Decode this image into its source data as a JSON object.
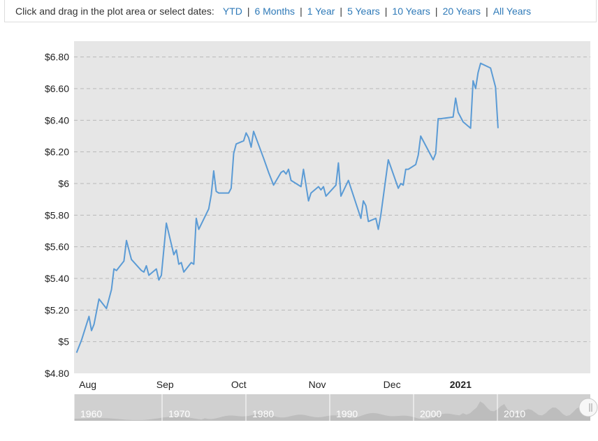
{
  "range_selector": {
    "prompt": "Click and drag in the plot area or select dates:",
    "options": [
      "YTD",
      "6 Months",
      "1 Year",
      "5 Years",
      "10 Years",
      "20 Years",
      "All Years"
    ]
  },
  "navigator": {
    "years": [
      "1960",
      "1970",
      "1980",
      "1990",
      "2000",
      "2010"
    ],
    "handle_icon": "drag-handle-icon"
  },
  "colors": {
    "line": "#5b9bd5",
    "plot_background": "#e6e6e6",
    "grid": "#b8b8b8",
    "navigator_background": "#d0d0d0",
    "navigator_area": "#bdbdbd",
    "link": "#2f7ab8"
  },
  "chart_data": {
    "type": "line",
    "title": "",
    "xlabel": "",
    "ylabel": "",
    "xlim": [
      "2020-07-30",
      "2021-02-22"
    ],
    "ylim": [
      4.8,
      6.9
    ],
    "grid": true,
    "legend": "none",
    "y_ticks": [
      {
        "value": 4.8,
        "label": "$4.80"
      },
      {
        "value": 5.0,
        "label": "$5"
      },
      {
        "value": 5.2,
        "label": "$5.20"
      },
      {
        "value": 5.4,
        "label": "$5.40"
      },
      {
        "value": 5.6,
        "label": "$5.60"
      },
      {
        "value": 5.8,
        "label": "$5.80"
      },
      {
        "value": 6.0,
        "label": "$6"
      },
      {
        "value": 6.2,
        "label": "$6.20"
      },
      {
        "value": 6.4,
        "label": "$6.40"
      },
      {
        "value": 6.6,
        "label": "$6.60"
      },
      {
        "value": 6.8,
        "label": "$6.80"
      }
    ],
    "x_ticks": [
      {
        "date": "2020-08-01",
        "label": "Aug",
        "bold": false
      },
      {
        "date": "2020-09-01",
        "label": "Sep",
        "bold": false
      },
      {
        "date": "2020-10-01",
        "label": "Oct",
        "bold": false
      },
      {
        "date": "2020-11-01",
        "label": "Nov",
        "bold": false
      },
      {
        "date": "2020-12-01",
        "label": "Dec",
        "bold": false
      },
      {
        "date": "2021-01-01",
        "label": "2021",
        "bold": true
      }
    ],
    "series": [
      {
        "points": [
          [
            "2020-07-31",
            4.93
          ],
          [
            "2020-08-02",
            5.01
          ],
          [
            "2020-08-05",
            5.16
          ],
          [
            "2020-08-06",
            5.07
          ],
          [
            "2020-08-07",
            5.11
          ],
          [
            "2020-08-09",
            5.27
          ],
          [
            "2020-08-12",
            5.21
          ],
          [
            "2020-08-14",
            5.33
          ],
          [
            "2020-08-15",
            5.46
          ],
          [
            "2020-08-16",
            5.45
          ],
          [
            "2020-08-19",
            5.51
          ],
          [
            "2020-08-20",
            5.64
          ],
          [
            "2020-08-22",
            5.52
          ],
          [
            "2020-08-26",
            5.45
          ],
          [
            "2020-08-27",
            5.44
          ],
          [
            "2020-08-28",
            5.48
          ],
          [
            "2020-08-29",
            5.42
          ],
          [
            "2020-09-01",
            5.46
          ],
          [
            "2020-09-02",
            5.39
          ],
          [
            "2020-09-03",
            5.42
          ],
          [
            "2020-09-05",
            5.75
          ],
          [
            "2020-09-08",
            5.55
          ],
          [
            "2020-09-09",
            5.58
          ],
          [
            "2020-09-10",
            5.49
          ],
          [
            "2020-09-11",
            5.5
          ],
          [
            "2020-09-12",
            5.44
          ],
          [
            "2020-09-15",
            5.5
          ],
          [
            "2020-09-16",
            5.49
          ],
          [
            "2020-09-17",
            5.78
          ],
          [
            "2020-09-18",
            5.71
          ],
          [
            "2020-09-22",
            5.84
          ],
          [
            "2020-09-23",
            5.93
          ],
          [
            "2020-09-24",
            6.08
          ],
          [
            "2020-09-25",
            5.95
          ],
          [
            "2020-09-26",
            5.94
          ],
          [
            "2020-09-30",
            5.94
          ],
          [
            "2020-10-01",
            5.97
          ],
          [
            "2020-10-02",
            6.19
          ],
          [
            "2020-10-03",
            6.25
          ],
          [
            "2020-10-06",
            6.27
          ],
          [
            "2020-10-07",
            6.32
          ],
          [
            "2020-10-08",
            6.29
          ],
          [
            "2020-10-09",
            6.23
          ],
          [
            "2020-10-10",
            6.33
          ],
          [
            "2020-10-14",
            6.16
          ],
          [
            "2020-10-16",
            6.07
          ],
          [
            "2020-10-18",
            5.99
          ],
          [
            "2020-10-21",
            6.07
          ],
          [
            "2020-10-22",
            6.08
          ],
          [
            "2020-10-23",
            6.06
          ],
          [
            "2020-10-24",
            6.09
          ],
          [
            "2020-10-25",
            6.02
          ],
          [
            "2020-10-29",
            5.98
          ],
          [
            "2020-10-30",
            6.09
          ],
          [
            "2020-11-01",
            5.89
          ],
          [
            "2020-11-02",
            5.94
          ],
          [
            "2020-11-05",
            5.98
          ],
          [
            "2020-11-06",
            5.96
          ],
          [
            "2020-11-07",
            5.98
          ],
          [
            "2020-11-08",
            5.92
          ],
          [
            "2020-11-12",
            5.99
          ],
          [
            "2020-11-13",
            6.13
          ],
          [
            "2020-11-14",
            5.92
          ],
          [
            "2020-11-17",
            6.02
          ],
          [
            "2020-11-22",
            5.78
          ],
          [
            "2020-11-23",
            5.89
          ],
          [
            "2020-11-24",
            5.86
          ],
          [
            "2020-11-25",
            5.76
          ],
          [
            "2020-11-28",
            5.78
          ],
          [
            "2020-11-29",
            5.71
          ],
          [
            "2020-11-30",
            5.8
          ],
          [
            "2020-12-03",
            6.15
          ],
          [
            "2020-12-07",
            5.97
          ],
          [
            "2020-12-08",
            6.0
          ],
          [
            "2020-12-09",
            5.99
          ],
          [
            "2020-12-10",
            6.09
          ],
          [
            "2020-12-11",
            6.09
          ],
          [
            "2020-12-14",
            6.12
          ],
          [
            "2020-12-15",
            6.18
          ],
          [
            "2020-12-16",
            6.3
          ],
          [
            "2020-12-21",
            6.15
          ],
          [
            "2020-12-22",
            6.19
          ],
          [
            "2020-12-23",
            6.41
          ],
          [
            "2020-12-24",
            6.41
          ],
          [
            "2020-12-29",
            6.42
          ],
          [
            "2020-12-30",
            6.54
          ],
          [
            "2020-12-31",
            6.45
          ],
          [
            "2021-01-02",
            6.39
          ],
          [
            "2021-01-05",
            6.35
          ],
          [
            "2021-01-06",
            6.65
          ],
          [
            "2021-01-07",
            6.6
          ],
          [
            "2021-01-08",
            6.7
          ],
          [
            "2021-01-09",
            6.76
          ],
          [
            "2021-01-13",
            6.73
          ],
          [
            "2021-01-15",
            6.61
          ],
          [
            "2021-01-16",
            6.35
          ]
        ]
      }
    ]
  }
}
